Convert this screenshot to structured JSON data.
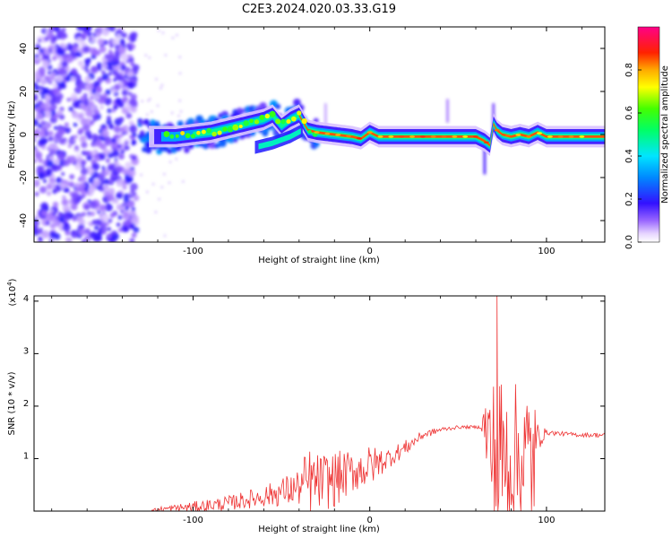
{
  "title": "C2E3.2024.020.03.33.G19",
  "colors": {
    "snr_line": "#ee3333",
    "spec_core": "#cc2233"
  },
  "chart_data": [
    {
      "type": "heatmap",
      "name": "spectrogram",
      "xlabel": "Height of straight line (km)",
      "ylabel": "Frequency (Hz)",
      "xlim": [
        -190,
        133
      ],
      "ylim": [
        -50,
        50
      ],
      "xticks": [
        -100,
        0,
        100
      ],
      "yticks": [
        -40,
        -20,
        0,
        20,
        40
      ],
      "ridge": {
        "x": [
          -190,
          -130,
          -125,
          -110,
          -100,
          -90,
          -80,
          -70,
          -60,
          -55,
          -50,
          -45,
          -40,
          -35,
          -30,
          -20,
          -10,
          -5,
          0,
          5,
          20,
          40,
          50,
          60,
          65,
          68,
          70,
          72,
          75,
          80,
          85,
          90,
          95,
          100,
          133
        ],
        "y": [
          0,
          0,
          -1,
          -1,
          0,
          1,
          3,
          5,
          7,
          9,
          4,
          7,
          9,
          2,
          1,
          0,
          -1,
          -2,
          1,
          -1,
          -1,
          -1,
          -1,
          -1,
          -3,
          -5,
          5,
          2,
          0,
          -1,
          0,
          -1,
          1,
          -1,
          -1
        ]
      },
      "lower_branch": {
        "x": [
          -65,
          -55,
          -45,
          -38
        ],
        "y": [
          -6,
          -4,
          -1,
          2
        ]
      },
      "colorbar": {
        "label": "Normalized spectral amplitude",
        "range": [
          0,
          1
        ],
        "ticks": [
          "0.0",
          "0.2",
          "0.4",
          "0.6",
          "0.8"
        ]
      }
    },
    {
      "type": "line",
      "name": "snr",
      "xlabel": "Height of straight line (km)",
      "ylabel": "SNR (10 * v/v)",
      "y_scale_label": "(x10",
      "y_scale_exp": "4",
      "y_scale_close": ")",
      "xlim": [
        -190,
        133
      ],
      "ylim": [
        0,
        4.1
      ],
      "xticks": [
        -100,
        0,
        100
      ],
      "yticks": [
        1,
        2,
        3,
        4
      ],
      "envelope": {
        "x": [
          -190,
          -125,
          -120,
          -100,
          -80,
          -60,
          -40,
          -35,
          -30,
          -20,
          -10,
          0,
          10,
          20,
          30,
          40,
          50,
          60,
          63,
          65,
          70,
          72,
          75,
          80,
          85,
          90,
          93,
          95,
          100,
          110,
          120,
          133
        ],
        "base": [
          0,
          0,
          0.03,
          0.08,
          0.15,
          0.28,
          0.45,
          0.5,
          0.55,
          0.6,
          0.75,
          0.85,
          1.0,
          1.2,
          1.45,
          1.55,
          1.6,
          1.6,
          1.6,
          1.62,
          1.0,
          1.0,
          1.0,
          1.0,
          1.0,
          1.0,
          1.0,
          1.4,
          1.5,
          1.47,
          1.45,
          1.45
        ],
        "noise": [
          0,
          0,
          0.05,
          0.1,
          0.14,
          0.2,
          0.35,
          0.75,
          0.55,
          0.55,
          0.4,
          0.4,
          0.2,
          0.15,
          0.08,
          0.05,
          0.03,
          0.03,
          0.03,
          0.6,
          1.6,
          2.3,
          1.5,
          1.5,
          1.4,
          1.5,
          1.3,
          0.3,
          0.05,
          0.04,
          0.04,
          0.05
        ]
      },
      "peak": {
        "x": 72,
        "y": 4.1
      }
    }
  ]
}
